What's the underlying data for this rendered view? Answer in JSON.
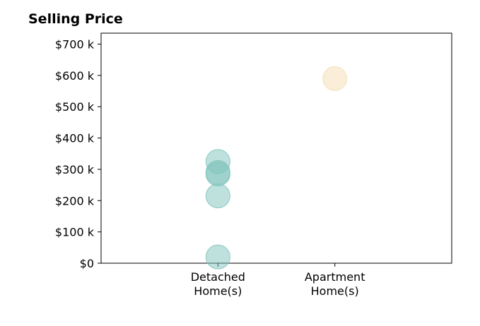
{
  "chart_data": {
    "type": "scatter",
    "title": "Selling Price",
    "xlabel": "",
    "ylabel": "",
    "categories": [
      [
        "Detached",
        "Home(s)"
      ],
      [
        "Apartment",
        "Home(s)"
      ]
    ],
    "x_range": [
      -1,
      2
    ],
    "ylim": [
      0,
      735000
    ],
    "yticks": [
      {
        "value": 0,
        "label": "$0"
      },
      {
        "value": 100000,
        "label": "$100 k"
      },
      {
        "value": 200000,
        "label": "$200 k"
      },
      {
        "value": 300000,
        "label": "$300 k"
      },
      {
        "value": 400000,
        "label": "$400 k"
      },
      {
        "value": 500000,
        "label": "$500 k"
      },
      {
        "value": 600000,
        "label": "$600 k"
      },
      {
        "value": 700000,
        "label": "$700 k"
      }
    ],
    "grid": false,
    "series": [
      {
        "category_index": 0,
        "color": "#7fc4bc",
        "values": [
          20000,
          215000,
          285000,
          290000,
          325000
        ]
      },
      {
        "category_index": 1,
        "color": "#f5deb3",
        "values": [
          590000
        ]
      }
    ]
  }
}
